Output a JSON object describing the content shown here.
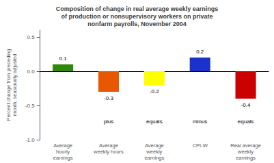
{
  "chart_data": {
    "type": "bar",
    "title": "Composition of change in real average weekly earnings\nof production or nonsupervisory workers on private\nnonfarm payrolls, November 2004",
    "categories": [
      "Average\nhourly\nearnings",
      "Average\nweekly hours",
      "Average\nweekly\nearnings",
      "CPI-W",
      "Real average\nweekly\nearnings"
    ],
    "values": [
      0.1,
      -0.3,
      -0.2,
      0.2,
      -0.4
    ],
    "colors": [
      "#2E8B0A",
      "#E85800",
      "#FFFF00",
      "#1C30CC",
      "#CC0000"
    ],
    "ylabel": "Percent change from preceding\nmonth, seasonally adjusted",
    "ylim": [
      -1.0,
      0.6
    ],
    "yticks": [
      {
        "value": -1.0,
        "label": "-1.0"
      },
      {
        "value": -0.5,
        "label": "-0.5"
      },
      {
        "value": 0.0,
        "label": "0.0"
      },
      0.5
    ],
    "data_labels": true,
    "grid": false,
    "annotations": [
      {
        "text": "plus",
        "x": "Average\nweekly hours",
        "y": -0.73
      },
      {
        "text": "equals",
        "x": "Average\nweekly\nearnings",
        "y": -0.73
      },
      {
        "text": "minus",
        "x": "CPI-W",
        "y": -0.73
      },
      {
        "text": "equals",
        "x": "Real average\nweekly\nearnings",
        "y": -0.73
      }
    ]
  }
}
